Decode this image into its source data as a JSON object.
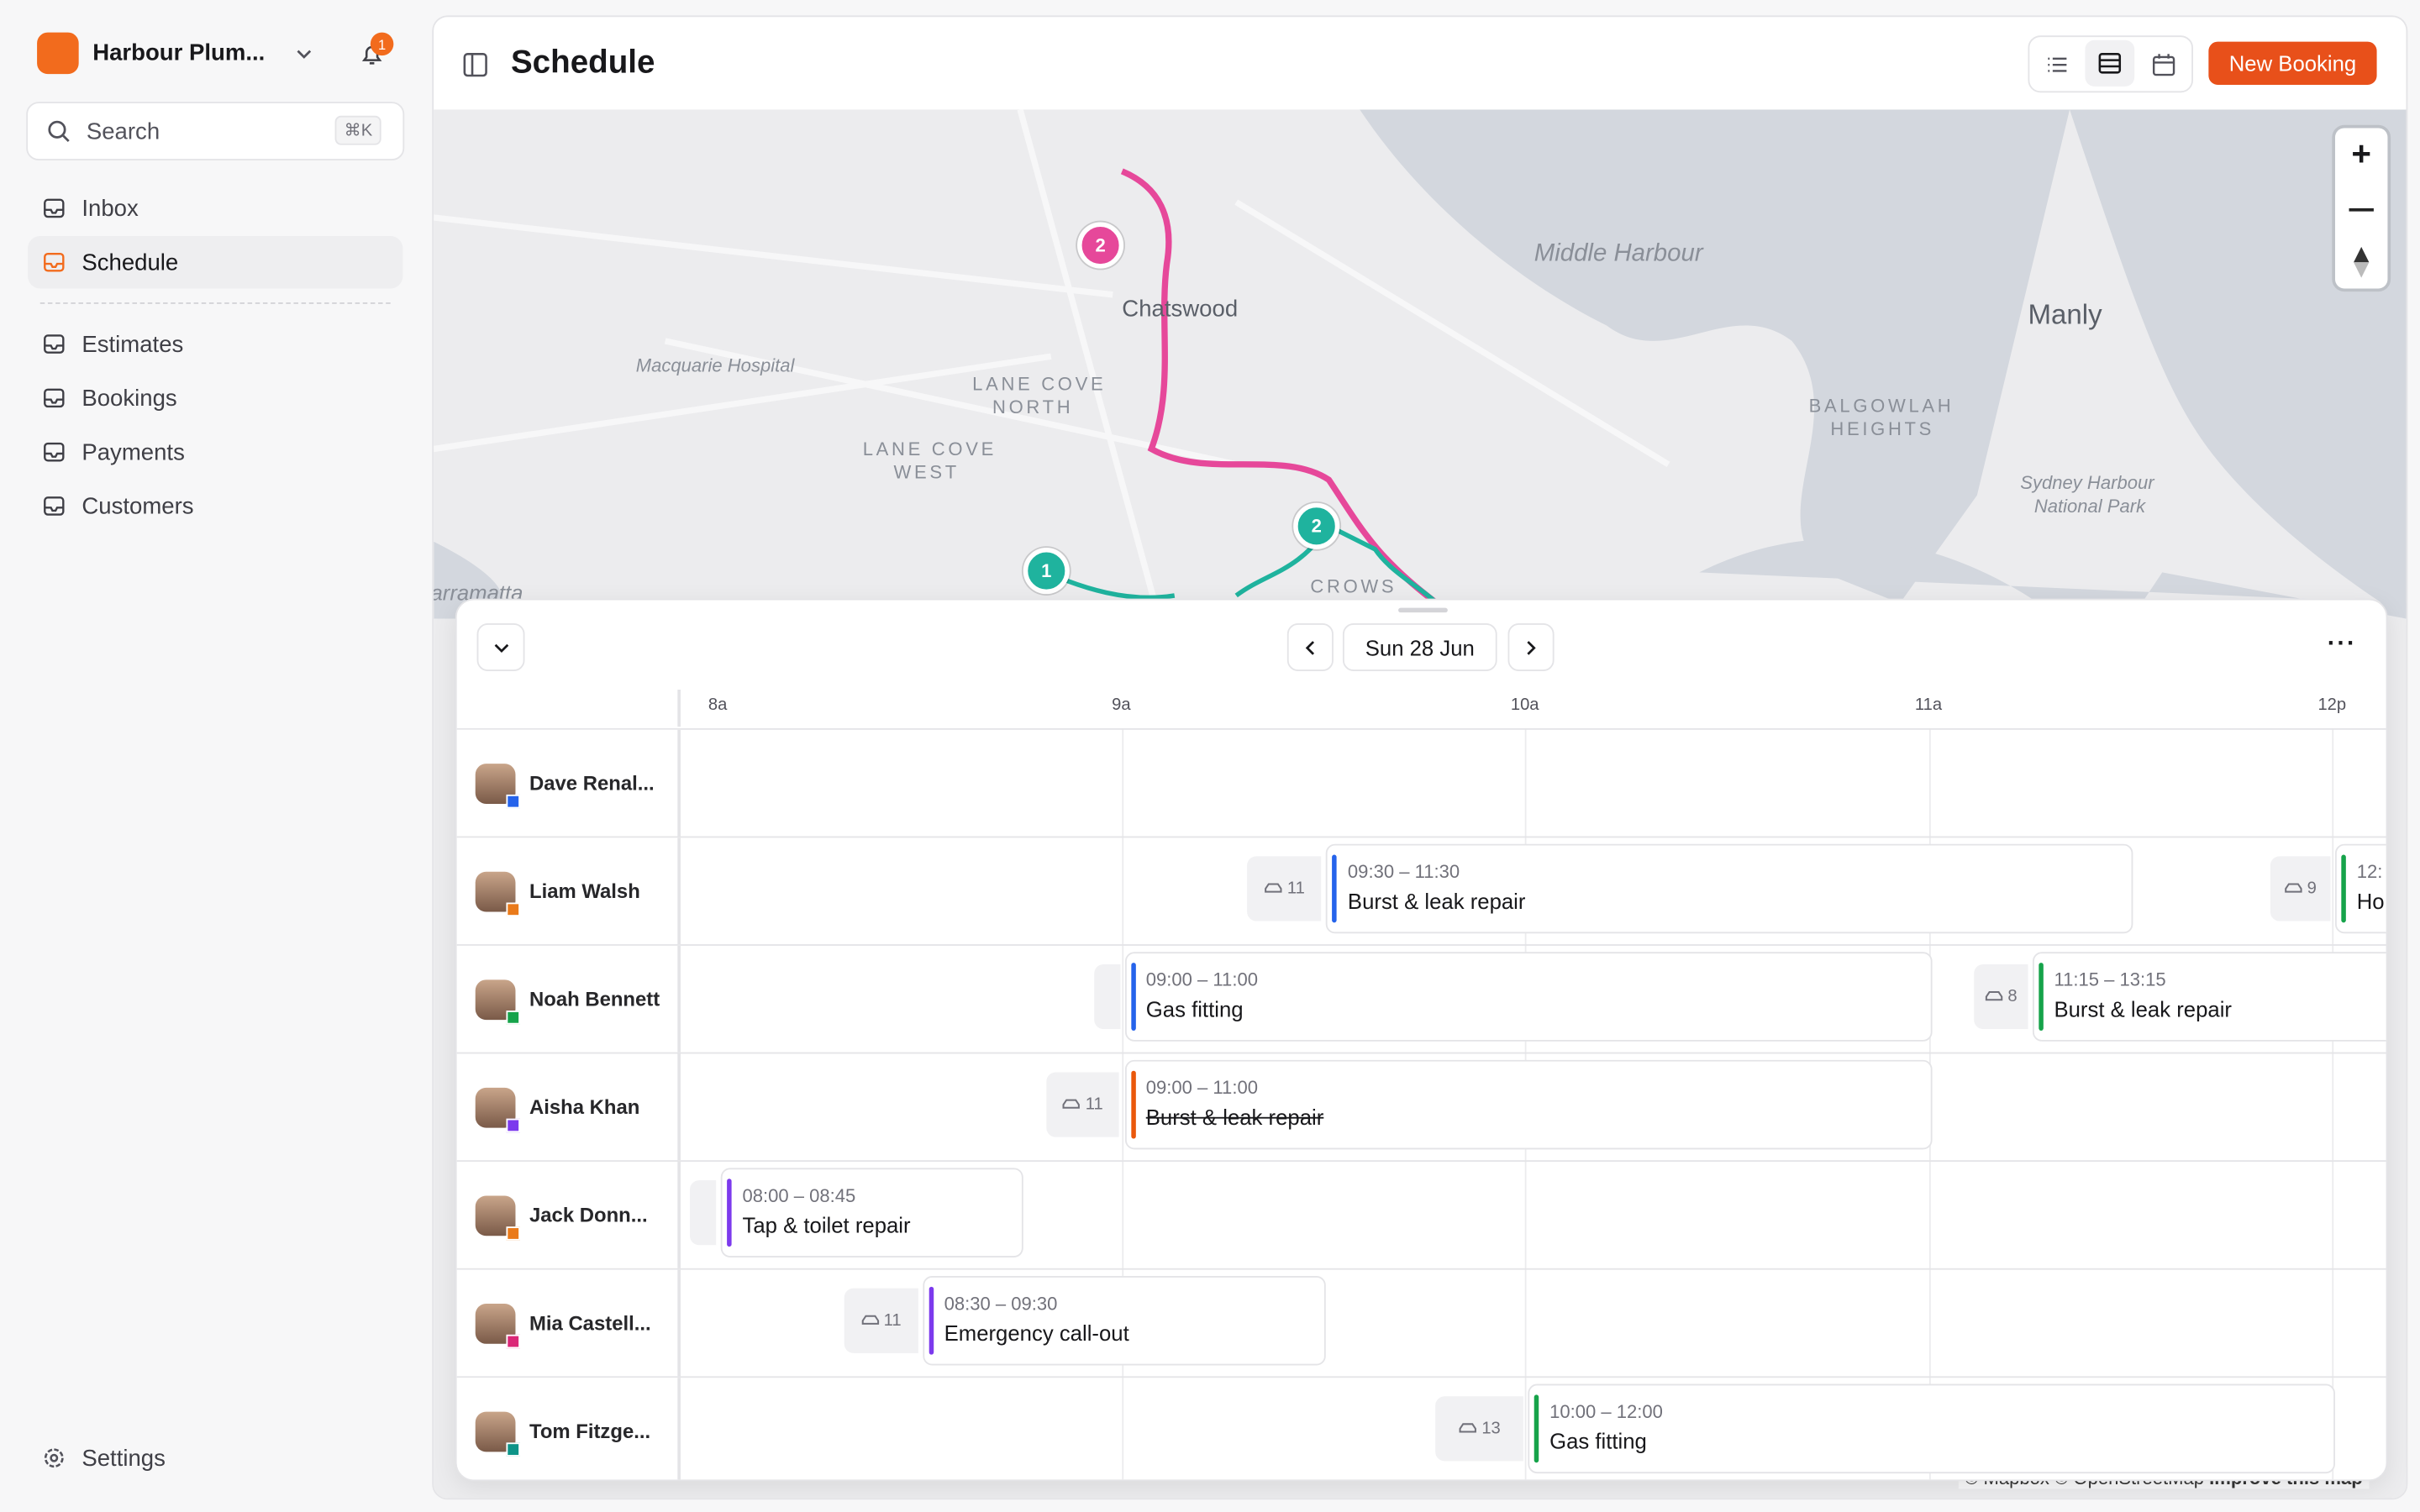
{
  "sidebar": {
    "org": "Harbour Plum...",
    "notifications": "1",
    "search": "Search",
    "shortcut": "⌘K",
    "nav": [
      "Inbox",
      "Schedule"
    ],
    "nav2": [
      "Estimates",
      "Bookings",
      "Payments",
      "Customers"
    ],
    "settings": "Settings"
  },
  "header": {
    "title": "Schedule",
    "new_booking": "New Booking"
  },
  "map": {
    "labels": [
      "Middle Harbour",
      "Chatswood",
      "Manly",
      "Macquarie Hospital",
      "LANE COVE",
      "NORTH",
      "LANE COVE",
      "WEST",
      "BALGOWLAH",
      "HEIGHTS",
      "Sydney Harbour",
      "National Park",
      "arramatta",
      "CROWS"
    ],
    "markers": [
      "2",
      "2",
      "1"
    ],
    "attribution": "© Mapbox © OpenStreetMap",
    "improve": "Improve this map"
  },
  "schedule": {
    "date": "Sun 28 Jun",
    "hours": [
      "8a",
      "9a",
      "10a",
      "11a",
      "12p"
    ],
    "staff": [
      {
        "name": "Dave Renal...",
        "color": "#2563eb"
      },
      {
        "name": "Liam Walsh",
        "color": "#ea7a1a"
      },
      {
        "name": "Noah Bennett",
        "color": "#16a34a"
      },
      {
        "name": "Aisha Khan",
        "color": "#7c3aed"
      },
      {
        "name": "Jack Donn...",
        "color": "#ea7a1a"
      },
      {
        "name": "Mia Castell...",
        "color": "#db2777"
      },
      {
        "name": "Tom Fitzge...",
        "color": "#0d9488"
      }
    ],
    "bookings": [
      {
        "row": 1,
        "time": "09:30 – 11:30",
        "title": "Burst & leak repair",
        "color": "#2563eb",
        "travel": 11
      },
      {
        "row": 1,
        "time": "12:",
        "title": "Ho",
        "color": "#16a34a",
        "travel": 9
      },
      {
        "row": 2,
        "time": "09:00 – 11:00",
        "title": "Gas fitting",
        "color": "#2563eb"
      },
      {
        "row": 2,
        "time": "11:15 – 13:15",
        "title": "Burst & leak repair",
        "color": "#16a34a",
        "travel": 8
      },
      {
        "row": 3,
        "time": "09:00 – 11:00",
        "title": "Burst & leak repair",
        "color": "#ea580c",
        "travel": 11,
        "cancelled": true
      },
      {
        "row": 4,
        "time": "08:00 – 08:45",
        "title": "Tap & toilet repair",
        "color": "#7c3aed"
      },
      {
        "row": 5,
        "time": "08:30 – 09:30",
        "title": "Emergency call-out",
        "color": "#7c3aed",
        "travel": 11
      },
      {
        "row": 6,
        "time": "10:00 – 12:00",
        "title": "Gas fitting",
        "color": "#16a34a",
        "travel": 13
      }
    ]
  }
}
